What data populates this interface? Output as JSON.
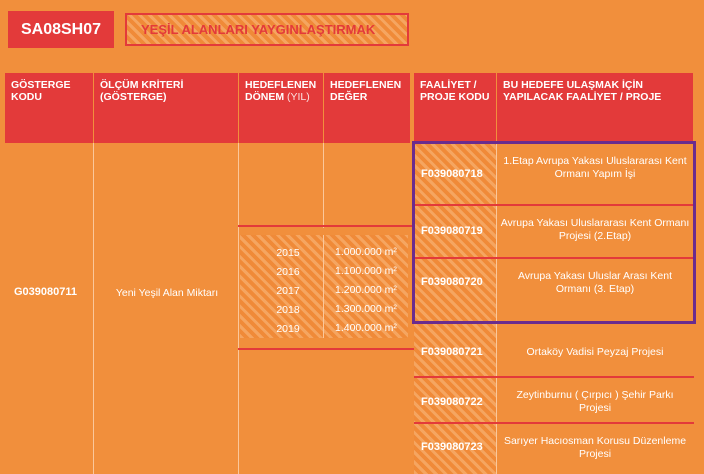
{
  "header": {
    "badge": "SA08SH07",
    "title": "YEŞİL ALANLARI YAYGINLAŞTIRMAK"
  },
  "columns": {
    "gosterge_kodu": "GÖSTERGE KODU",
    "olcum_kriteri_main": "ÖLÇÜM KRİTERİ",
    "olcum_kriteri_sub": "(GÖSTERGE)",
    "donem_main": "HEDEFLENEN DÖNEM",
    "donem_unit": "(YIL)",
    "deger": "HEDEFLENEN DEĞER",
    "faaliyet_kodu": "FAALİYET / PROJE KODU",
    "faaliyet_adi": "BU HEDEFE ULAŞMAK İÇİN YAPILACAK FAALİYET / PROJE"
  },
  "indicator": {
    "code": "G039080711",
    "name": "Yeni Yeşil Alan Miktarı"
  },
  "targets": [
    {
      "year": "2015",
      "value": "1.000.000 m²"
    },
    {
      "year": "2016",
      "value": "1.100.000 m²"
    },
    {
      "year": "2017",
      "value": "1.200.000 m²"
    },
    {
      "year": "2018",
      "value": "1.300.000 m²"
    },
    {
      "year": "2019",
      "value": "1.400.000 m²"
    }
  ],
  "activities": [
    {
      "code": "F039080718",
      "name": "1.Etap Avrupa Yakası Uluslararası Kent Ormanı Yapım İşi"
    },
    {
      "code": "F039080719",
      "name": "Avrupa Yakası Uluslararası Kent Ormanı Projesi (2.Etap)"
    },
    {
      "code": "F039080720",
      "name": "Avrupa Yakası Uluslar Arası Kent Ormanı (3. Etap)"
    },
    {
      "code": "F039080721",
      "name": "Ortaköy Vadisi Peyzaj Projesi"
    },
    {
      "code": "F039080722",
      "name": "Zeytinburnu ( Çırpıcı ) Şehir Parkı Projesi"
    },
    {
      "code": "F039080723",
      "name": "Sarıyer Hacıosman Korusu Düzenleme Projesi"
    }
  ]
}
